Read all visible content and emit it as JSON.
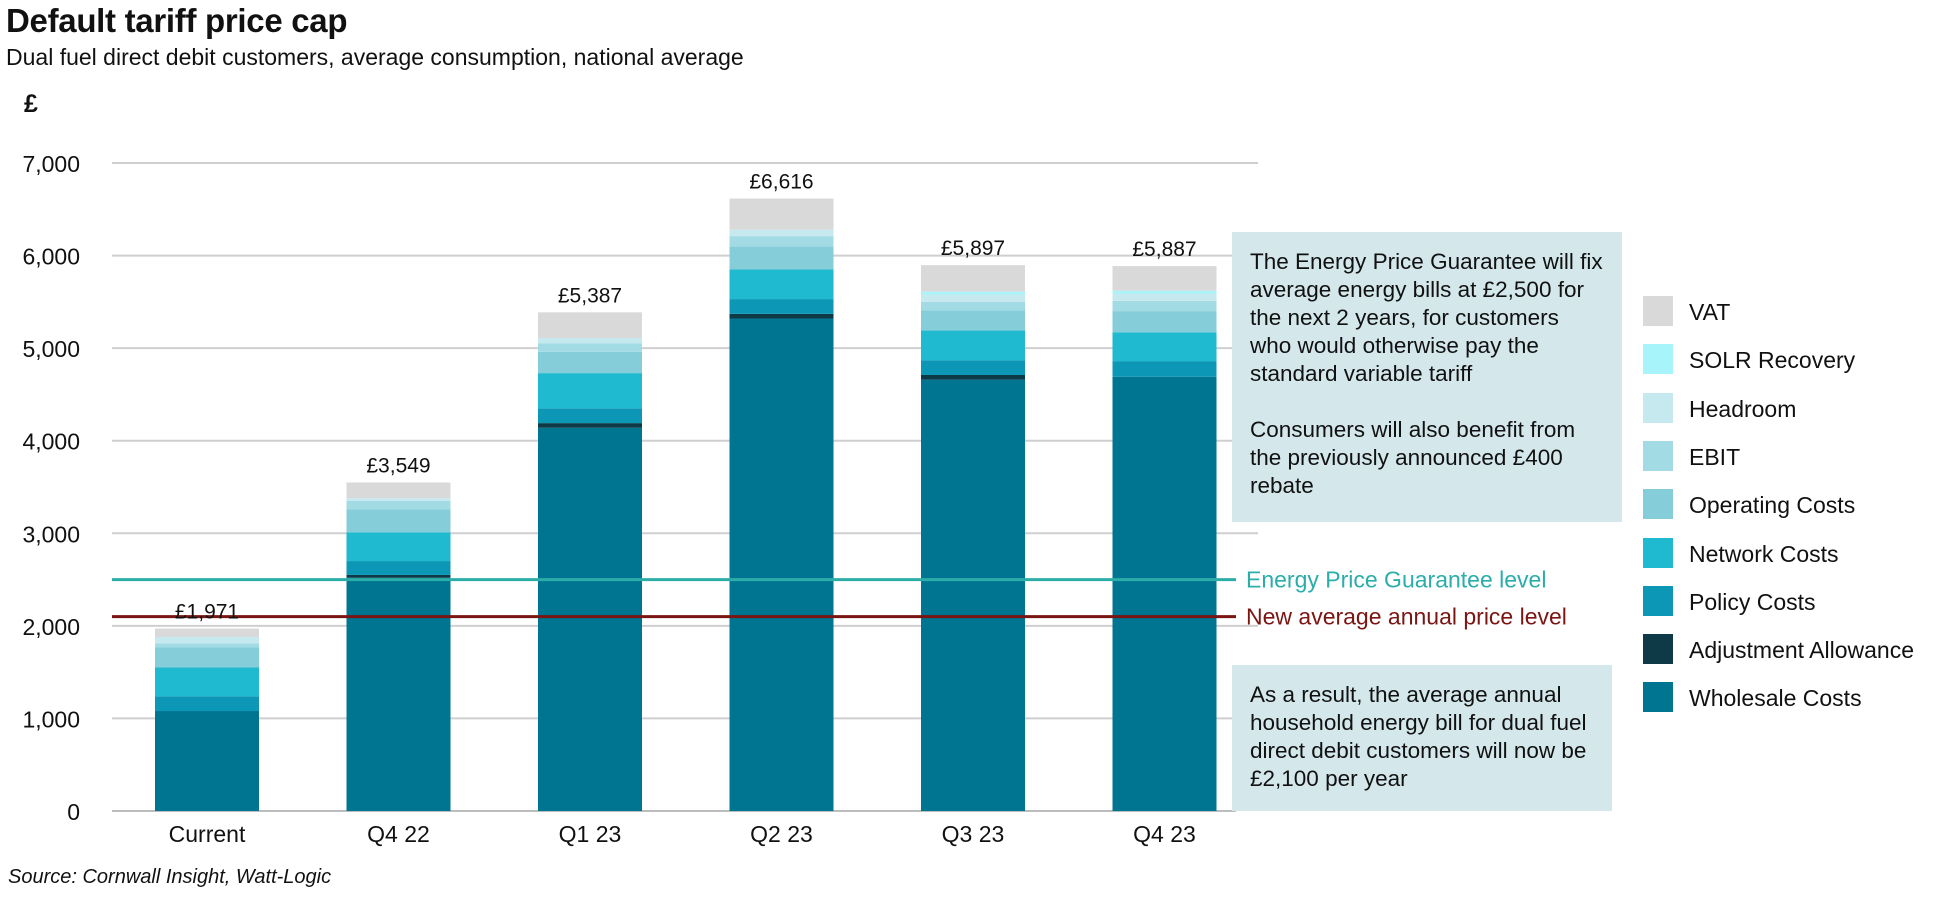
{
  "title": "Default tariff price cap",
  "subtitle": "Dual fuel direct debit customers, average consumption, national average",
  "source": "Source: Cornwall Insight, Watt-Logic",
  "callouts": {
    "guarantee_p1": "The Energy Price Guarantee will fix average energy bills at £2,500 for the next 2 years, for customers who would otherwise pay the standard variable tariff",
    "guarantee_p2": "Consumers will also benefit from the previously announced £400 rebate",
    "result": "As a result, the average annual household energy bill for dual fuel direct debit customers will now be £2,100 per year"
  },
  "legend": [
    {
      "label": "VAT",
      "color": "#d9d9d9"
    },
    {
      "label": "SOLR Recovery",
      "color": "#a8f4fb"
    },
    {
      "label": "Headroom",
      "color": "#c6e8ef"
    },
    {
      "label": "EBIT",
      "color": "#a3dbe4"
    },
    {
      "label": "Operating Costs",
      "color": "#86cdda"
    },
    {
      "label": "Network Costs",
      "color": "#1fbad0"
    },
    {
      "label": "Policy Costs",
      "color": "#0c97b7"
    },
    {
      "label": "Adjustment Allowance",
      "color": "#0e3947"
    },
    {
      "label": "Wholesale Costs",
      "color": "#007592"
    }
  ],
  "chart_data": {
    "type": "bar",
    "stacked": true,
    "title": "Default tariff price cap",
    "ylabel": "£",
    "ylim": [
      0,
      7000
    ],
    "yticks": [
      0,
      1000,
      2000,
      3000,
      4000,
      5000,
      6000,
      7000
    ],
    "ytick_labels": [
      "0",
      "1,000",
      "2,000",
      "3,000",
      "4,000",
      "5,000",
      "6,000",
      "7,000"
    ],
    "grid": true,
    "legend_position": "right",
    "categories": [
      "Current",
      "Q4 22",
      "Q1 23",
      "Q2 23",
      "Q3 23",
      "Q4 23"
    ],
    "totals": [
      1971,
      3549,
      5387,
      6616,
      5897,
      5887
    ],
    "total_labels": [
      "£1,971",
      "£3,549",
      "£5,387",
      "£6,616",
      "£5,897",
      "£5,887"
    ],
    "series": [
      {
        "name": "Wholesale Costs",
        "color": "#007592",
        "values": [
          1080,
          2520,
          4140,
          5320,
          4660,
          4690
        ]
      },
      {
        "name": "Adjustment Allowance",
        "color": "#0e3947",
        "values": [
          0,
          30,
          50,
          50,
          50,
          0
        ]
      },
      {
        "name": "Policy Costs",
        "color": "#0c97b7",
        "values": [
          160,
          150,
          160,
          160,
          160,
          170
        ]
      },
      {
        "name": "Network Costs",
        "color": "#1fbad0",
        "values": [
          310,
          310,
          380,
          320,
          320,
          310
        ]
      },
      {
        "name": "Operating Costs",
        "color": "#86cdda",
        "values": [
          220,
          250,
          230,
          250,
          220,
          230
        ]
      },
      {
        "name": "EBIT",
        "color": "#a3dbe4",
        "values": [
          40,
          90,
          90,
          110,
          90,
          110
        ]
      },
      {
        "name": "Headroom",
        "color": "#c6e8ef",
        "values": [
          70,
          30,
          60,
          70,
          80,
          80
        ]
      },
      {
        "name": "SOLR Recovery",
        "color": "#a8f4fb",
        "values": [
          0,
          0,
          0,
          0,
          30,
          30
        ]
      },
      {
        "name": "VAT",
        "color": "#d9d9d9",
        "values": [
          91,
          169,
          277,
          336,
          287,
          267
        ]
      }
    ],
    "reference_lines": [
      {
        "label": "Energy Price Guarantee level",
        "value": 2500,
        "color": "#2bada8"
      },
      {
        "label": "New average annual price level",
        "value": 2100,
        "color": "#7a1512"
      }
    ]
  }
}
